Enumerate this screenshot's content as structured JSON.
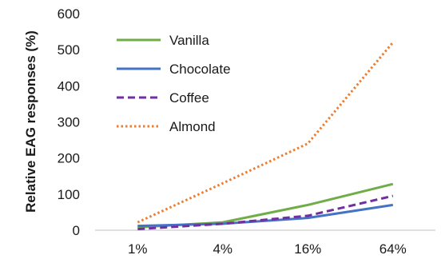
{
  "chart_data": {
    "type": "line",
    "categories": [
      "1%",
      "4%",
      "16%",
      "64%"
    ],
    "ylabel": "Relative EAG responses (%)",
    "xlabel": "",
    "ylim": [
      0,
      600
    ],
    "yticks": [
      "0",
      "100",
      "200",
      "300",
      "400",
      "500",
      "600"
    ],
    "grid": false,
    "legend_position": "top-left",
    "series": [
      {
        "name": "Vanilla",
        "values": [
          8,
          22,
          70,
          128
        ],
        "color": "#70ad47",
        "style": "solid"
      },
      {
        "name": "Chocolate",
        "values": [
          12,
          18,
          34,
          70
        ],
        "color": "#4472c4",
        "style": "solid"
      },
      {
        "name": "Coffee",
        "values": [
          3,
          18,
          40,
          95
        ],
        "color": "#7030a0",
        "style": "dashed"
      },
      {
        "name": "Almond",
        "values": [
          22,
          130,
          240,
          520
        ],
        "color": "#ed7d31",
        "style": "dotted"
      }
    ]
  }
}
